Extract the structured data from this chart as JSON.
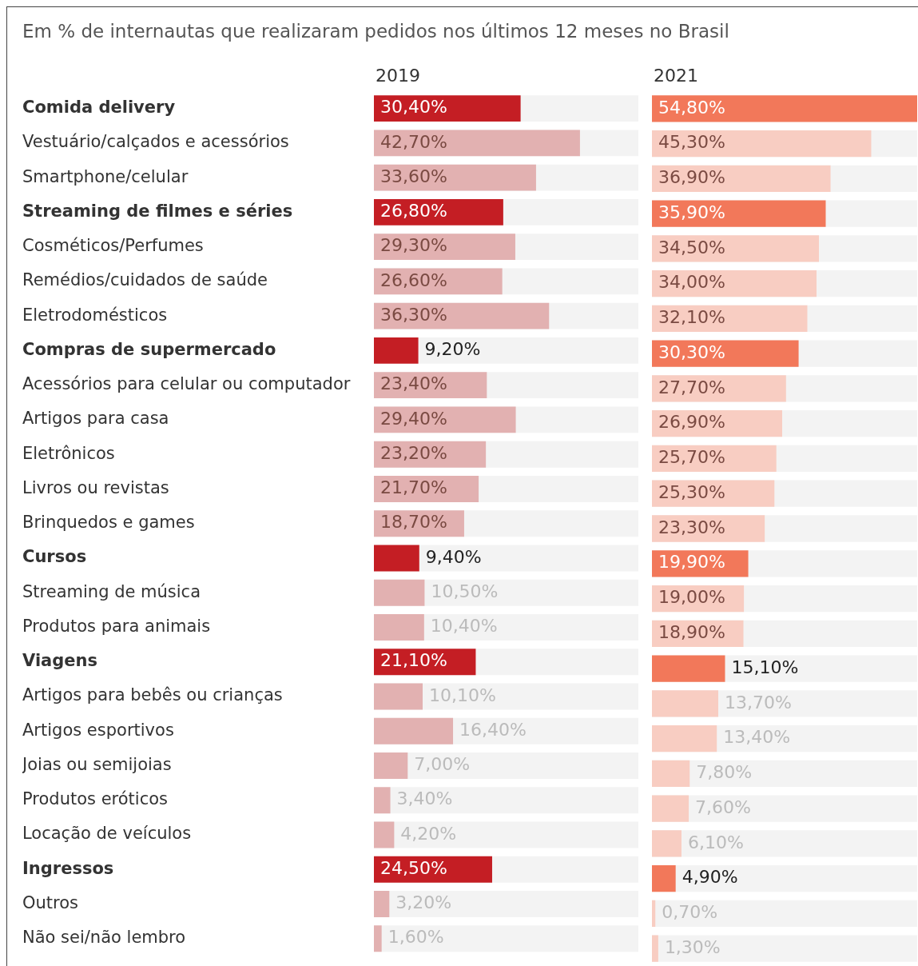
{
  "chart_data": [
    {
      "type": "bar",
      "orientation": "horizontal",
      "title": "2019",
      "subtitle": "Em % de internautas que realizaram pedidos nos últimos 12 meses no Brasil",
      "xlim": [
        0,
        54.8
      ],
      "tick_labels": "y",
      "grid": false,
      "categories": [
        "Comida delivery",
        "Vestuário/calçados e acessórios",
        "Smartphone/celular",
        "Streaming de filmes e séries",
        "Cosméticos/Perfumes",
        "Remédios/cuidados de saúde",
        "Eletrodomésticos",
        "Compras de supermercado",
        "Acessórios para celular ou computador",
        "Artigos para casa",
        "Eletrônicos",
        "Livros ou revistas",
        "Brinquedos e games",
        "Cursos",
        "Streaming de música",
        "Produtos para animais",
        "Viagens",
        "Artigos para bebês ou crianças",
        "Artigos esportivos",
        "Joias ou semijoias",
        "Produtos eróticos",
        "Locação de veículos",
        "Ingressos",
        "Outros",
        "Não sei/não lembro"
      ],
      "values": [
        30.4,
        42.7,
        33.6,
        26.8,
        29.3,
        26.6,
        36.3,
        9.2,
        23.4,
        29.4,
        23.2,
        21.7,
        18.7,
        9.4,
        10.5,
        10.4,
        21.1,
        10.1,
        16.4,
        7.0,
        3.4,
        4.2,
        24.5,
        3.2,
        1.6
      ],
      "value_labels": [
        "30,40%",
        "42,70%",
        "33,60%",
        "26,80%",
        "29,30%",
        "26,60%",
        "36,30%",
        "9,20%",
        "23,40%",
        "29,40%",
        "23,20%",
        "21,70%",
        "18,70%",
        "9,40%",
        "10,50%",
        "10,40%",
        "21,10%",
        "10,10%",
        "16,40%",
        "7,00%",
        "3,40%",
        "4,20%",
        "24,50%",
        "3,20%",
        "1,60%"
      ],
      "colors": [
        "#c41e24",
        "#e2b1b1",
        "#e2b1b1",
        "#c41e24",
        "#e2b1b1",
        "#e2b1b1",
        "#e2b1b1",
        "#c41e24",
        "#e2b1b1",
        "#e2b1b1",
        "#e2b1b1",
        "#e2b1b1",
        "#e2b1b1",
        "#c41e24",
        "#e2b1b1",
        "#e2b1b1",
        "#c41e24",
        "#e2b1b1",
        "#e2b1b1",
        "#e2b1b1",
        "#e2b1b1",
        "#e2b1b1",
        "#c41e24",
        "#e2b1b1",
        "#e2b1b1"
      ]
    },
    {
      "type": "bar",
      "orientation": "horizontal",
      "title": "2021",
      "xlim": [
        0,
        54.8
      ],
      "tick_labels": false,
      "grid": false,
      "categories": [
        null,
        null,
        null,
        null,
        null,
        null,
        null,
        null,
        null,
        null,
        null,
        null,
        null,
        null,
        null,
        null,
        null,
        null,
        null,
        null,
        null,
        null,
        null,
        null,
        null
      ],
      "values": [
        54.8,
        45.3,
        36.9,
        35.9,
        34.5,
        34.0,
        32.1,
        30.3,
        27.7,
        26.9,
        25.7,
        25.3,
        23.3,
        19.9,
        19.0,
        18.9,
        15.1,
        13.7,
        13.4,
        7.8,
        7.6,
        6.1,
        4.9,
        0.7,
        1.3
      ],
      "value_labels": [
        "54,80%",
        "45,30%",
        "36,90%",
        "35,90%",
        "34,50%",
        "34,00%",
        "32,10%",
        "30,30%",
        "27,70%",
        "26,90%",
        "25,70%",
        "25,30%",
        "23,30%",
        "19,90%",
        "19,00%",
        "18,90%",
        "15,10%",
        "13,70%",
        "13,40%",
        "7,80%",
        "7,60%",
        "6,10%",
        "4,90%",
        "0,70%",
        "1,30%"
      ],
      "colors": [
        "#f2785a",
        "#f8cdc2",
        "#f8cdc2",
        "#f2785a",
        "#f8cdc2",
        "#f8cdc2",
        "#f8cdc2",
        "#f2785a",
        "#f8cdc2",
        "#f8cdc2",
        "#f8cdc2",
        "#f8cdc2",
        "#f8cdc2",
        "#f2785a",
        "#f8cdc2",
        "#f8cdc2",
        "#f2785a",
        "#f8cdc2",
        "#f8cdc2",
        "#f8cdc2",
        "#f8cdc2",
        "#f8cdc2",
        "#f2785a",
        "#f8cdc2",
        "#f8cdc2"
      ]
    }
  ]
}
